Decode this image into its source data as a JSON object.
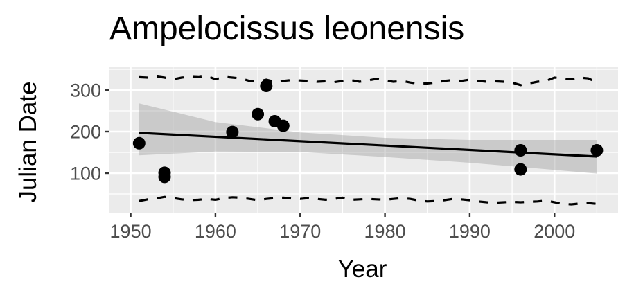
{
  "chart_data": {
    "type": "scatter",
    "title": "Ampelocissus leonensis",
    "xlabel": "Year",
    "ylabel": "Julian Date",
    "xlim": [
      1947.5,
      2007.5
    ],
    "ylim": [
      5,
      355
    ],
    "x_ticks": [
      "1950",
      "1960",
      "1970",
      "1980",
      "1990",
      "2000"
    ],
    "y_ticks": [
      "100",
      "200",
      "300"
    ],
    "grid": true,
    "points": [
      {
        "x": 1951,
        "y": 172
      },
      {
        "x": 1954,
        "y": 101
      },
      {
        "x": 1954,
        "y": 91
      },
      {
        "x": 1962,
        "y": 199
      },
      {
        "x": 1965,
        "y": 242
      },
      {
        "x": 1966,
        "y": 310
      },
      {
        "x": 1967,
        "y": 225
      },
      {
        "x": 1968,
        "y": 214
      },
      {
        "x": 1996,
        "y": 155
      },
      {
        "x": 1996,
        "y": 109
      },
      {
        "x": 2005,
        "y": 155
      }
    ],
    "trend_line": {
      "x": [
        1951,
        2005
      ],
      "y": [
        197,
        140
      ]
    },
    "confidence_band": {
      "x": [
        1951,
        1960,
        1970,
        1980,
        1990,
        2000,
        2005
      ],
      "upper": [
        268,
        223,
        198,
        185,
        180,
        180,
        180
      ],
      "lower": [
        143,
        152,
        151,
        139,
        125,
        108,
        99
      ]
    },
    "upper_dashed": {
      "x": [
        1951,
        1952,
        1953,
        1954,
        1955,
        1956,
        1957,
        1958,
        1959,
        1960,
        1961,
        1962,
        1963,
        1964,
        1965,
        1966,
        1967,
        1968,
        1969,
        1970,
        1971,
        1972,
        1973,
        1974,
        1975,
        1976,
        1977,
        1978,
        1979,
        1980,
        1981,
        1982,
        1983,
        1984,
        1985,
        1986,
        1987,
        1988,
        1989,
        1990,
        1991,
        1992,
        1993,
        1994,
        1995,
        1996,
        1997,
        1998,
        1999,
        2000,
        2001,
        2002,
        2003,
        2004,
        2005
      ],
      "y": [
        331,
        330,
        333,
        330,
        326,
        330,
        332,
        331,
        334,
        326,
        332,
        330,
        328,
        322,
        320,
        325,
        320,
        322,
        324,
        323,
        322,
        320,
        321,
        319,
        322,
        324,
        320,
        323,
        327,
        323,
        320,
        322,
        318,
        315,
        316,
        318,
        322,
        324,
        322,
        325,
        322,
        320,
        321,
        320,
        318,
        312,
        316,
        320,
        322,
        330,
        328,
        326,
        330,
        328,
        318
      ]
    },
    "lower_dashed": {
      "x": [
        1951,
        1952,
        1953,
        1954,
        1955,
        1956,
        1957,
        1958,
        1959,
        1960,
        1961,
        1962,
        1963,
        1964,
        1965,
        1966,
        1967,
        1968,
        1969,
        1970,
        1971,
        1972,
        1973,
        1974,
        1975,
        1976,
        1977,
        1978,
        1979,
        1980,
        1981,
        1982,
        1983,
        1984,
        1985,
        1986,
        1987,
        1988,
        1989,
        1990,
        1991,
        1992,
        1993,
        1994,
        1995,
        1996,
        1997,
        1998,
        1999,
        2000,
        2001,
        2002,
        2003,
        2004,
        2005
      ],
      "y": [
        33,
        37,
        39,
        43,
        40,
        37,
        35,
        36,
        38,
        36,
        40,
        42,
        41,
        38,
        35,
        38,
        40,
        41,
        39,
        38,
        40,
        38,
        36,
        38,
        41,
        36,
        37,
        38,
        37,
        36,
        38,
        40,
        38,
        34,
        32,
        33,
        35,
        38,
        37,
        35,
        32,
        30,
        29,
        30,
        31,
        30,
        31,
        32,
        34,
        30,
        26,
        25,
        27,
        28,
        26
      ]
    }
  }
}
